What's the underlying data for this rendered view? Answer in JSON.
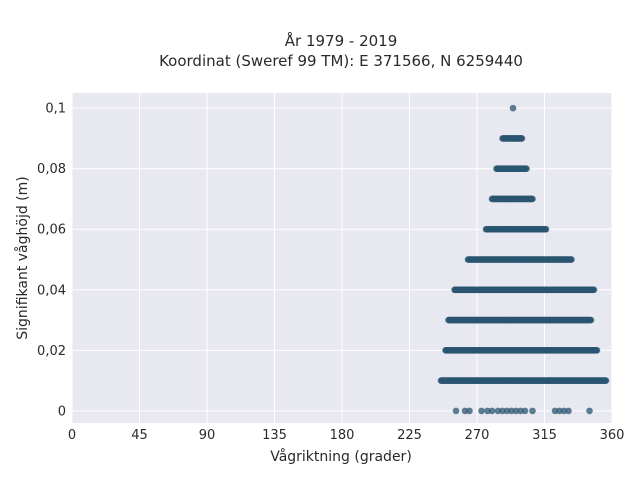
{
  "chart_data": {
    "type": "scatter",
    "title_line1": "År 1979 - 2019",
    "title_line2": "Koordinat (Sweref 99 TM): E 371566, N 6259440",
    "xlabel": "Vågriktning (grader)",
    "ylabel": "Signifikant våghöjd (m)",
    "xlim": [
      0,
      360
    ],
    "ylim": [
      -0.004,
      0.105
    ],
    "x_ticks": [
      0,
      45,
      90,
      135,
      180,
      225,
      270,
      315,
      360
    ],
    "x_tick_labels": [
      "0",
      "45",
      "90",
      "135",
      "180",
      "225",
      "270",
      "315",
      "360"
    ],
    "y_ticks": [
      0,
      0.02,
      0.04,
      0.06,
      0.08,
      0.1
    ],
    "y_tick_labels": [
      "0",
      "0,02",
      "0,04",
      "0,06",
      "0,08",
      "0,1"
    ],
    "grid": true,
    "colors": {
      "background": "#e8e8f0",
      "grid": "#ffffff",
      "marker": "#2b5570"
    },
    "point_bands": [
      {
        "y": 0.1,
        "x_min": 294,
        "x_max": 294
      },
      {
        "y": 0.09,
        "x_min": 287,
        "x_max": 300
      },
      {
        "y": 0.08,
        "x_min": 283,
        "x_max": 303
      },
      {
        "y": 0.07,
        "x_min": 280,
        "x_max": 307
      },
      {
        "y": 0.06,
        "x_min": 276,
        "x_max": 316
      },
      {
        "y": 0.05,
        "x_min": 264,
        "x_max": 333
      },
      {
        "y": 0.04,
        "x_min": 255,
        "x_max": 348
      },
      {
        "y": 0.03,
        "x_min": 251,
        "x_max": 346
      },
      {
        "y": 0.02,
        "x_min": 249,
        "x_max": 350
      },
      {
        "y": 0.01,
        "x_min": 246,
        "x_max": 356
      }
    ],
    "points_at_zero": [
      256,
      262,
      265,
      273,
      277,
      280,
      284,
      287,
      290,
      293,
      296,
      299,
      302,
      307,
      322,
      325,
      328,
      331,
      345
    ]
  }
}
